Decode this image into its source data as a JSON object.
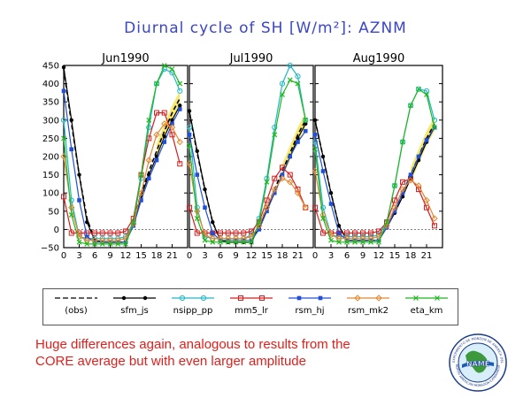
{
  "title": "Diurnal cycle of SH [W/m²]: AZNM",
  "panels": [
    "Jun1990",
    "Jul1990",
    "Aug1990"
  ],
  "y_ticks": [
    "450",
    "400",
    "350",
    "300",
    "250",
    "200",
    "150",
    "100",
    "50",
    "0",
    "−50"
  ],
  "x_ticks": [
    "0",
    "3",
    "6",
    "9",
    "12",
    "15",
    "18",
    "21"
  ],
  "legend": [
    {
      "name": "(obs)",
      "color": "#000000",
      "marker": "none",
      "dash": true
    },
    {
      "name": "sfm_js",
      "color": "#000000",
      "marker": "dot"
    },
    {
      "name": "nsipp_pp",
      "color": "#20b8c8",
      "marker": "circle"
    },
    {
      "name": "mm5_lr",
      "color": "#d81e1e",
      "marker": "square"
    },
    {
      "name": "rsm_hj",
      "color": "#2050d8",
      "marker": "filledsquare"
    },
    {
      "name": "rsm_mk2",
      "color": "#e08830",
      "marker": "diamond"
    },
    {
      "name": "eta_km",
      "color": "#1fb81f",
      "marker": "x"
    }
  ],
  "caption_line1": "Huge differences again, analogous to results from the",
  "caption_line2": "CORE average but with even larger amplitude",
  "logo_text_top": "EXPERIMENTO DE MONZON DE AMERICA DEL NORTE",
  "logo_text_mid": "NAME",
  "logo_text_bottom": "NORTH AMERICAN MONSOON EXPERIMENT",
  "chart_data": {
    "type": "line",
    "xlabel": "",
    "ylabel": "",
    "ylim": [
      -50,
      450
    ],
    "xlim": [
      0,
      24
    ],
    "x": [
      0,
      1.5,
      3,
      4.5,
      6,
      7.5,
      9,
      10.5,
      12,
      13.5,
      15,
      16.5,
      18,
      19.5,
      21,
      22.5
    ],
    "panels": [
      {
        "title": "Jun1990",
        "series": [
          {
            "name": "(obs)",
            "values": [
              440,
              290,
              150,
              30,
              -30,
              -35,
              -35,
              -35,
              -35,
              20,
              100,
              160,
              215,
              270,
              320,
              360
            ]
          },
          {
            "name": "sfm_js",
            "values": [
              445,
              300,
              150,
              20,
              -30,
              -35,
              -35,
              -35,
              -35,
              15,
              90,
              150,
              200,
              255,
              300,
              340
            ]
          },
          {
            "name": "nsipp_pp",
            "values": [
              300,
              80,
              -20,
              -25,
              -25,
              -25,
              -25,
              -25,
              -20,
              20,
              140,
              280,
              400,
              440,
              430,
              380
            ]
          },
          {
            "name": "mm5_lr",
            "values": [
              90,
              -10,
              -10,
              -10,
              -10,
              -10,
              -10,
              -10,
              -5,
              30,
              150,
              250,
              320,
              320,
              260,
              180
            ]
          },
          {
            "name": "rsm_hj",
            "values": [
              380,
              220,
              80,
              -20,
              -35,
              -35,
              -35,
              -35,
              -35,
              10,
              80,
              140,
              190,
              240,
              290,
              330
            ]
          },
          {
            "name": "rsm_mk2",
            "values": [
              200,
              60,
              -20,
              -30,
              -30,
              -30,
              -30,
              -30,
              -25,
              15,
              100,
              190,
              260,
              290,
              280,
              240
            ]
          },
          {
            "name": "eta_km",
            "values": [
              250,
              40,
              -35,
              -40,
              -40,
              -40,
              -40,
              -40,
              -40,
              20,
              150,
              300,
              400,
              450,
              440,
              400
            ]
          }
        ]
      },
      {
        "title": "Jul1990",
        "series": [
          {
            "name": "(obs)",
            "values": [
              320,
              210,
              110,
              20,
              -30,
              -35,
              -35,
              -35,
              -35,
              10,
              60,
              110,
              160,
              210,
              260,
              300
            ]
          },
          {
            "name": "sfm_js",
            "values": [
              325,
              215,
              110,
              20,
              -30,
              -35,
              -35,
              -35,
              -35,
              5,
              55,
              100,
              150,
              200,
              250,
              290
            ]
          },
          {
            "name": "nsipp_pp",
            "values": [
              280,
              60,
              -20,
              -25,
              -25,
              -25,
              -25,
              -25,
              -15,
              30,
              140,
              280,
              400,
              450,
              420,
              300
            ]
          },
          {
            "name": "mm5_lr",
            "values": [
              60,
              -10,
              -10,
              -10,
              -10,
              -10,
              -10,
              -10,
              -5,
              20,
              80,
              140,
              170,
              150,
              110,
              60
            ]
          },
          {
            "name": "rsm_hj",
            "values": [
              260,
              150,
              60,
              -10,
              -30,
              -30,
              -30,
              -30,
              -30,
              0,
              50,
              100,
              150,
              200,
              240,
              270
            ]
          },
          {
            "name": "rsm_mk2",
            "values": [
              180,
              50,
              -15,
              -25,
              -25,
              -25,
              -25,
              -25,
              -20,
              10,
              60,
              110,
              140,
              130,
              100,
              60
            ]
          },
          {
            "name": "eta_km",
            "values": [
              230,
              30,
              -30,
              -35,
              -35,
              -35,
              -35,
              -35,
              -35,
              20,
              130,
              260,
              370,
              410,
              400,
              300
            ]
          }
        ]
      },
      {
        "title": "Aug1990",
        "series": [
          {
            "name": "(obs)",
            "values": [
              300,
              200,
              100,
              10,
              -30,
              -30,
              -30,
              -30,
              -30,
              10,
              50,
              100,
              150,
              200,
              250,
              290
            ]
          },
          {
            "name": "sfm_js",
            "values": [
              300,
              200,
              100,
              10,
              -30,
              -30,
              -30,
              -30,
              -30,
              5,
              45,
              90,
              140,
              190,
              240,
              280
            ]
          },
          {
            "name": "nsipp_pp",
            "values": [
              240,
              60,
              -15,
              -20,
              -20,
              -20,
              -20,
              -20,
              -15,
              20,
              120,
              240,
              340,
              385,
              380,
              300
            ]
          },
          {
            "name": "mm5_lr",
            "values": [
              60,
              -10,
              -10,
              -10,
              -10,
              -10,
              -10,
              -10,
              -5,
              20,
              80,
              130,
              140,
              110,
              60,
              10
            ]
          },
          {
            "name": "rsm_hj",
            "values": [
              260,
              160,
              70,
              -10,
              -30,
              -30,
              -30,
              -30,
              -30,
              5,
              50,
              100,
              150,
              200,
              245,
              280
            ]
          },
          {
            "name": "rsm_mk2",
            "values": [
              160,
              40,
              -15,
              -25,
              -25,
              -25,
              -25,
              -25,
              -20,
              10,
              60,
              110,
              135,
              120,
              80,
              30
            ]
          },
          {
            "name": "eta_km",
            "values": [
              220,
              30,
              -30,
              -35,
              -35,
              -35,
              -35,
              -35,
              -35,
              20,
              120,
              240,
              340,
              385,
              370,
              280
            ]
          }
        ]
      }
    ]
  }
}
